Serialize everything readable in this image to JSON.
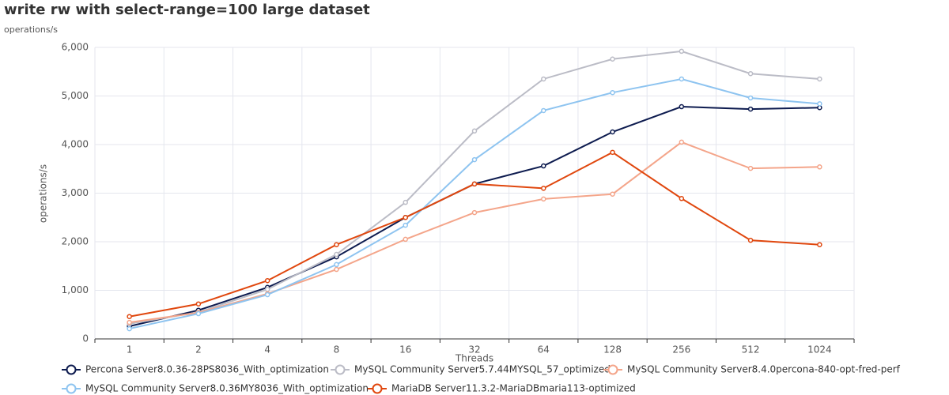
{
  "chart_data": {
    "type": "line",
    "title": "write rw with select-range=100 large dataset",
    "subtitle": "operations/s",
    "y_label": "operations/s",
    "x_label": "Threads",
    "categories": [
      "1",
      "2",
      "4",
      "8",
      "16",
      "32",
      "64",
      "128",
      "256",
      "512",
      "1024"
    ],
    "ylim": [
      0,
      6000
    ],
    "yticks": [
      0,
      {
        "value": 1000,
        "label": "1,000"
      },
      {
        "value": 2000,
        "label": "2,000"
      },
      {
        "value": 3000,
        "label": "3,000"
      },
      {
        "value": 4000,
        "label": "4,000"
      },
      {
        "value": 5000,
        "label": "5,000"
      },
      {
        "value": 6000,
        "label": "6,000"
      }
    ],
    "grid": true,
    "series": [
      {
        "name": "Percona Server8.0.36-28PS8036_With_optimization",
        "color": "#0d1b4f",
        "values": [
          260,
          590,
          1060,
          1690,
          2500,
          3190,
          3560,
          4260,
          4780,
          4730,
          4760
        ]
      },
      {
        "name": "MySQL Community Server5.7.44MYSQL_57_optimized",
        "color": "#bbbcc6",
        "values": [
          310,
          550,
          1020,
          1740,
          2810,
          4280,
          5350,
          5760,
          5920,
          5460,
          5350
        ]
      },
      {
        "name": "MySQL Community Server8.4.0percona-840-opt-fred-perf",
        "color": "#f4a58a",
        "values": [
          340,
          540,
          930,
          1430,
          2050,
          2600,
          2880,
          2980,
          4050,
          3510,
          3540
        ]
      },
      {
        "name": "MySQL Community Server8.0.36MY8036_With_optimization",
        "color": "#8ec4f0",
        "values": [
          210,
          520,
          910,
          1530,
          2340,
          3690,
          4700,
          5070,
          5350,
          4960,
          4840
        ]
      },
      {
        "name": "MariaDB Server11.3.2-MariaDBmaria113-optimized",
        "color": "#e0470e",
        "values": [
          460,
          720,
          1200,
          1940,
          2500,
          3190,
          3100,
          3840,
          2890,
          2030,
          1940
        ]
      }
    ]
  }
}
